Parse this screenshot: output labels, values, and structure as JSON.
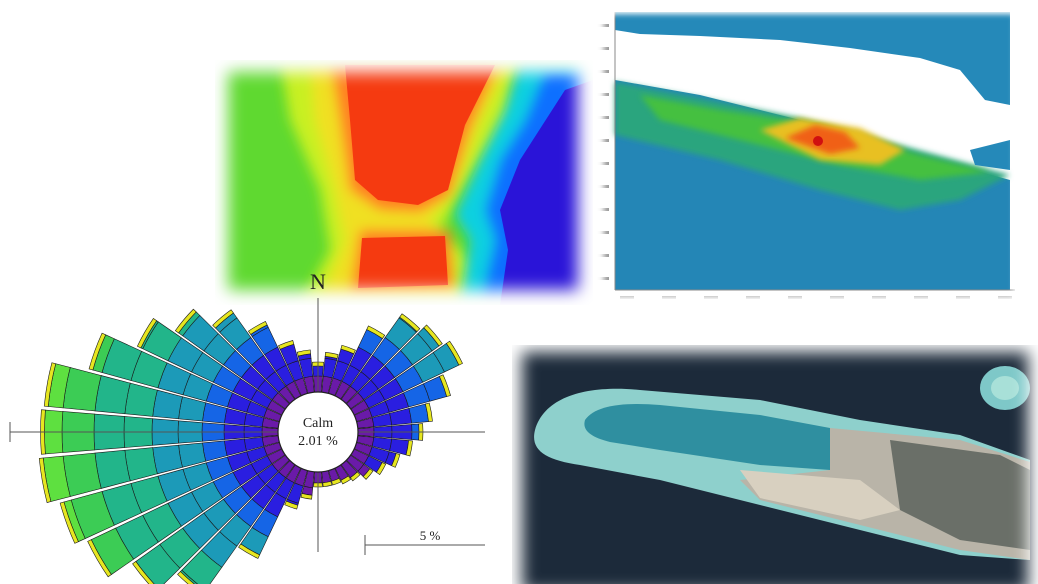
{
  "wind_rose": {
    "north_label": "N",
    "calm_label": "Calm",
    "calm_value": "2.01 %",
    "scale_label": "5 %"
  }
}
